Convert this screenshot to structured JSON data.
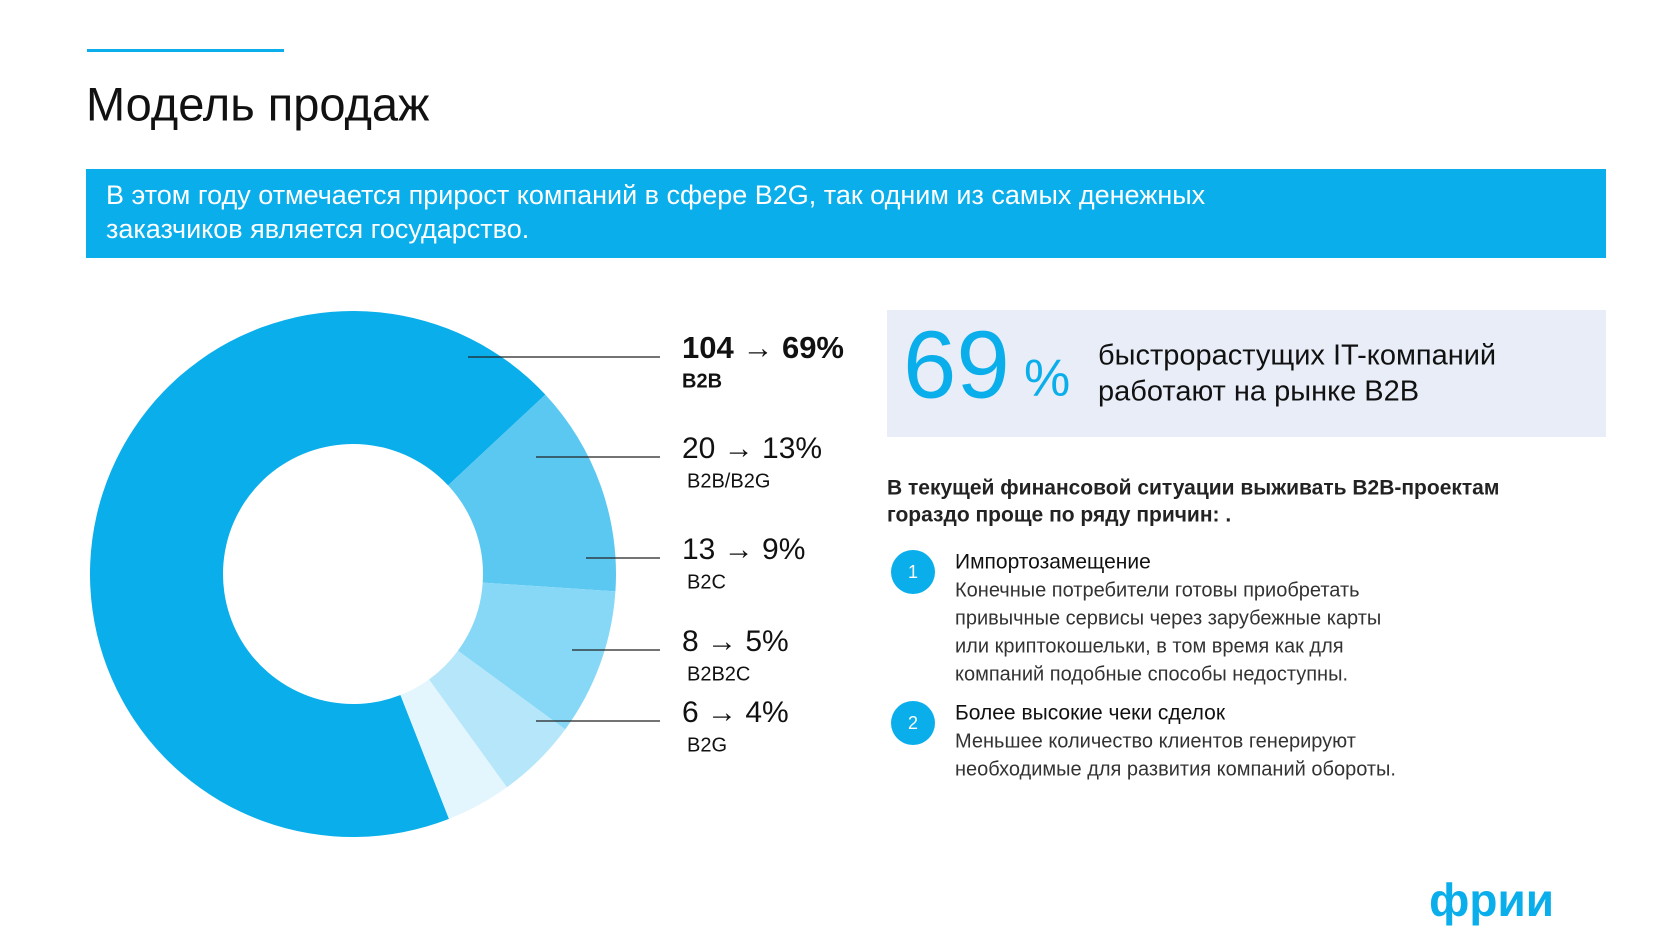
{
  "header": {
    "title": "Модель продаж",
    "banner_lines": [
      "В этом году отмечается прирост компаний в сфере B2G, так одним из самых денежных",
      "заказчиков является государство."
    ]
  },
  "chart_data": {
    "type": "donut",
    "categories": [
      "B2B",
      "B2B/B2G",
      "B2C",
      "B2B2C",
      "B2G"
    ],
    "values": [
      69,
      13,
      9,
      5,
      4
    ],
    "value_labels": [
      "104 → 69%",
      "20 → 13%",
      "13 → 9%",
      "8 → 5%",
      "6 → 4%"
    ],
    "colors": [
      "#0aaeeb",
      "#5bc8f2",
      "#87d8f7",
      "#b5e6fa",
      "#e3f5fd"
    ]
  },
  "stat": {
    "number": "69",
    "unit": "%",
    "lines": [
      "быстрорастущих IT-компаний",
      "работают на рынке B2B"
    ]
  },
  "intro": [
    "В текущей финансовой ситуации выживать B2B-проектам",
    "гораздо проще по ряду причин: ."
  ],
  "items": [
    {
      "number": "1",
      "heading": "Импортозамещение",
      "lines": [
        "Конечные потребители готовы приобретать",
        "привычные сервисы через зарубежные карты",
        "или криптокошельки, в том время как для",
        "компаний подобные способы недоступны."
      ]
    },
    {
      "number": "2",
      "heading": "Более высокие чеки сделок",
      "lines": [
        "Меньшее количество клиентов генерируют",
        "необходимые для развития компаний обороты."
      ]
    }
  ],
  "logo": "фрии"
}
